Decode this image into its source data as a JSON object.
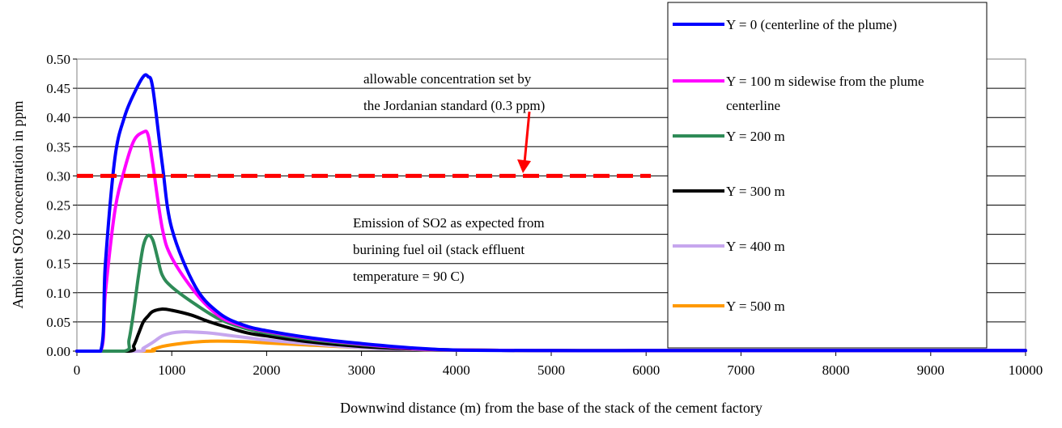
{
  "chart_data": {
    "type": "line",
    "xlabel": "Downwind distance (m) from the base of the stack of the cement factory",
    "ylabel": "Ambient SO2 concentration in ppm",
    "xlim": [
      0,
      10000
    ],
    "ylim": [
      0,
      0.5
    ],
    "x_ticks": [
      "0",
      "1000",
      "2000",
      "3000",
      "4000",
      "5000",
      "6000",
      "7000",
      "8000",
      "9000",
      "10000"
    ],
    "y_ticks": [
      "0.00",
      "0.05",
      "0.10",
      "0.15",
      "0.20",
      "0.25",
      "0.30",
      "0.35",
      "0.40",
      "0.45",
      "0.50"
    ],
    "grid": "horizontal",
    "legend_position": "top-right",
    "series": [
      {
        "name": "Y = 0 (centerline of the plume)",
        "color": "#0000ff",
        "x": [
          0,
          250,
          300,
          400,
          500,
          600,
          700,
          750,
          800,
          900,
          1000,
          1250,
          1500,
          1750,
          2000,
          2500,
          3000,
          3500,
          4000,
          5000,
          6000,
          8000,
          10000
        ],
        "y": [
          0,
          0,
          0.15,
          0.33,
          0.4,
          0.44,
          0.47,
          0.47,
          0.45,
          0.32,
          0.21,
          0.11,
          0.065,
          0.045,
          0.035,
          0.022,
          0.013,
          0.006,
          0.002,
          0.001,
          0.001,
          0.001,
          0.001
        ]
      },
      {
        "name": "Y = 100 m sidewise from the plume centerline",
        "color": "#ff00ff",
        "x": [
          0,
          250,
          300,
          400,
          500,
          600,
          700,
          750,
          800,
          900,
          1000,
          1250,
          1500,
          1750,
          2000,
          2500,
          3000,
          3500,
          4000,
          5000,
          6000,
          8000,
          10000
        ],
        "y": [
          0,
          0,
          0.1,
          0.24,
          0.31,
          0.36,
          0.375,
          0.37,
          0.32,
          0.21,
          0.16,
          0.1,
          0.06,
          0.043,
          0.034,
          0.021,
          0.012,
          0.005,
          0.002,
          0.001,
          0.001,
          0.001,
          0.001
        ]
      },
      {
        "name": "Y = 200 m",
        "color": "#2e8b57",
        "x": [
          0,
          500,
          550,
          600,
          650,
          700,
          750,
          800,
          850,
          900,
          1000,
          1250,
          1500,
          1750,
          2000,
          2500,
          3000,
          3500,
          4000,
          5000,
          6000,
          8000,
          10000
        ],
        "y": [
          0,
          0,
          0.02,
          0.07,
          0.13,
          0.18,
          0.198,
          0.19,
          0.16,
          0.13,
          0.11,
          0.08,
          0.055,
          0.04,
          0.031,
          0.019,
          0.011,
          0.005,
          0.002,
          0.001,
          0.001,
          0.001,
          0.001
        ]
      },
      {
        "name": "Y = 300 m",
        "color": "#000000",
        "x": [
          0,
          550,
          600,
          650,
          700,
          750,
          800,
          900,
          1000,
          1200,
          1400,
          1600,
          1800,
          2000,
          2500,
          3000,
          3500,
          4000,
          5000,
          6000,
          8000,
          10000
        ],
        "y": [
          0,
          0,
          0.01,
          0.03,
          0.05,
          0.06,
          0.068,
          0.072,
          0.07,
          0.062,
          0.05,
          0.04,
          0.031,
          0.026,
          0.015,
          0.008,
          0.004,
          0.002,
          0.001,
          0.001,
          0.001,
          0.001
        ]
      },
      {
        "name": "Y = 400 m",
        "color": "#c6a6ee",
        "x": [
          0,
          650,
          700,
          800,
          900,
          1000,
          1100,
          1200,
          1400,
          1600,
          1800,
          2000,
          2500,
          3000,
          3500,
          4000,
          5000,
          6000,
          8000,
          10000
        ],
        "y": [
          0,
          0,
          0.005,
          0.015,
          0.026,
          0.031,
          0.033,
          0.033,
          0.031,
          0.027,
          0.023,
          0.019,
          0.012,
          0.006,
          0.003,
          0.002,
          0.001,
          0.001,
          0.001,
          0.001
        ]
      },
      {
        "name": "Y = 500 m",
        "color": "#ff9900",
        "x": [
          0,
          750,
          800,
          900,
          1000,
          1200,
          1400,
          1600,
          1800,
          2000,
          2500,
          3000,
          3500,
          4000,
          5000,
          6000,
          8000,
          10000
        ],
        "y": [
          0,
          0,
          0.003,
          0.008,
          0.011,
          0.015,
          0.017,
          0.017,
          0.016,
          0.014,
          0.01,
          0.006,
          0.003,
          0.002,
          0.001,
          0.001,
          0.001,
          0.001
        ]
      }
    ],
    "reference_line": {
      "y": 0.3,
      "x_range": [
        0,
        6050
      ],
      "color": "#ff0000",
      "style": "dashed"
    },
    "annotations": {
      "standard_line1": "allowable concentration set by",
      "standard_line2": "the Jordanian standard (0.3 ppm)",
      "emission_line1": "Emission of SO2 as expected from",
      "emission_line2": "burining fuel oil (stack effluent",
      "emission_line3": "temperature = 90 C)"
    },
    "legend_entries": [
      [
        "Y = 0 (centerline of the plume)"
      ],
      [
        "Y = 100 m sidewise from the plume",
        "centerline"
      ],
      [
        "Y = 200 m"
      ],
      [
        "Y = 300 m"
      ],
      [
        "Y = 400 m"
      ],
      [
        "Y = 500 m"
      ]
    ]
  }
}
